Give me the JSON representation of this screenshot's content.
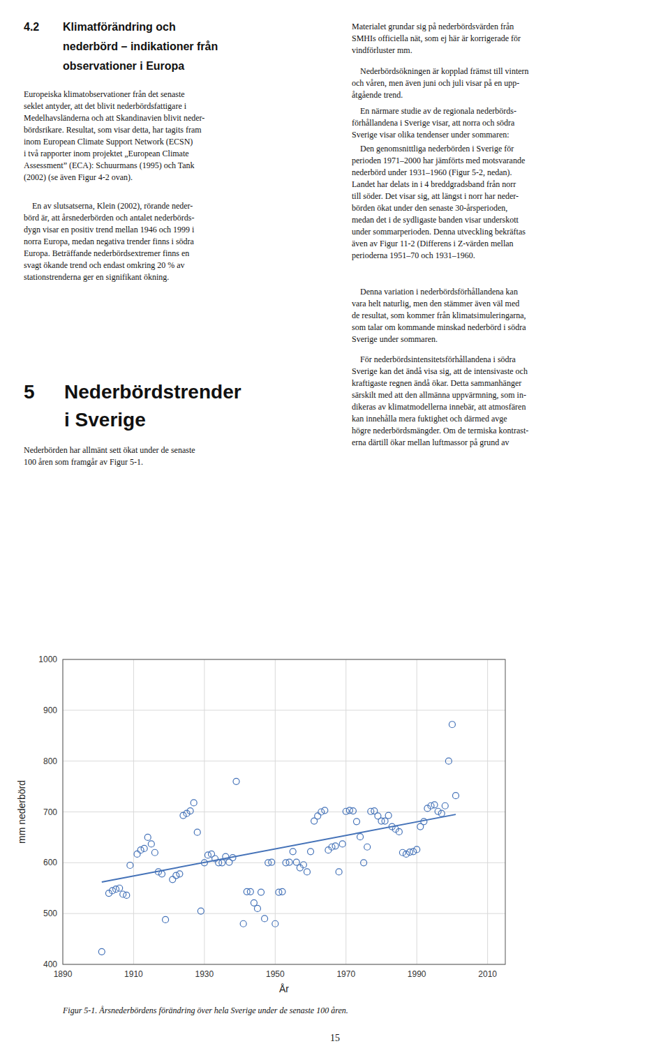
{
  "page": {
    "sections": [
      {
        "number": "4.2",
        "heading": [
          "Klimatförändring och",
          "nederbörd – indikationer från",
          "observationer i Europa"
        ]
      },
      {
        "number": "5",
        "heading": [
          "Nederbördstrender",
          "i Sverige"
        ]
      }
    ],
    "left_paragraphs": [
      [
        "Europeiska klimatobservationer från det senaste",
        "seklet antyder, att det blivit nederbördsfattigare i",
        "Medelhavsländerna och att Skandinavien blivit neder-",
        "bördsrikare. Resultat, som visar detta, har tagits fram",
        "inom European Climate Support Network (ECSN)",
        "i två rapporter inom projektet „European Climate",
        "Assessment” (ECA): Schuurmans (1995) och Tank",
        "(2002) (se även Figur 4-2 ovan)."
      ],
      [
        "    En av slutsatserna, Klein (2002), rörande neder-",
        "börd är, att årsnederbörden och antalet nederbörds-",
        "dygn visar en positiv trend mellan 1946 och 1999 i",
        "norra Europa, medan negativa trender finns i södra",
        "Europa. Beträffande nederbördsextremer finns en",
        "svagt ökande trend och endast omkring 20 % av",
        "stationstrenderna ger en signifikant ökning."
      ],
      [
        "Nederbörden har allmänt sett ökat under de senaste",
        "100 åren som framgår av Figur 5-1."
      ]
    ],
    "right_paragraphs": [
      [
        "Materialet grundar sig på nederbördsvärden från",
        "SMHIs officiella nät, som ej här är korrigerade för",
        "vindförluster mm."
      ],
      [
        "    Nederbördsökningen är kopplad främst till vintern",
        "och våren, men även juni och juli visar på en upp-",
        "åtgående trend."
      ],
      [
        "    En närmare studie av de regionala nederbörds-",
        "förhållandena i Sverige visar, att norra och södra",
        "Sverige visar olika tendenser under sommaren:"
      ],
      [
        "    Den genomsnittliga nederbörden i Sverige för",
        "perioden 1971–2000 har jämförts med motsvarande",
        "nederbörd under 1931–1960 (Figur 5-2, nedan).",
        "Landet har delats in i 4 breddgradsband från norr",
        "till söder. Det visar sig, att längst i norr har neder-",
        "börden ökat under den senaste 30-årsperioden,",
        "medan det i de sydligaste banden visar underskott",
        "under sommarperioden. Denna utveckling bekräftas",
        "även av Figur 11-2 (Differens i Z-värden mellan",
        "perioderna 1951–70 och 1931–1960."
      ],
      [
        "    Denna variation i nederbördsförhållandena kan",
        "vara helt naturlig, men den stämmer även väl med",
        "de resultat, som kommer från klimatsimuleringarna,",
        "som talar om kommande minskad nederbörd i södra",
        "Sverige under sommaren."
      ],
      [
        "    För nederbördsintensitetsförhållandena i södra",
        "Sverige kan det ändå visa sig, att de intensivaste och",
        "kraftigaste regnen ändå ökar. Detta sammanhänger",
        "särskilt med att den allmänna uppvärmning, som in-",
        "dikeras av klimatmodellerna innebär, att atmosfären",
        "kan innehålla mera fuktighet och därmed avge",
        "högre nederbördsmängder. Om de termiska kontrast-",
        "erna därtill ökar mellan luftmassor på grund av"
      ]
    ],
    "page_number": "15"
  },
  "chart_data": {
    "type": "scatter",
    "title": "Figur 5-1. Årsnederbördens förändring över hela Sverige under de senaste 100 åren.",
    "xlabel": "År",
    "ylabel": "mm nederbörd",
    "series": [
      {
        "type": "scatter",
        "marker": "circle",
        "color": "#4472b8",
        "x": [
          1901,
          1903,
          1904,
          1905,
          1906,
          1907,
          1908,
          1909,
          1911,
          1912,
          1913,
          1914,
          1915,
          1916,
          1917,
          1918,
          1919,
          1921,
          1922,
          1923,
          1924,
          1925,
          1926,
          1927,
          1928,
          1929,
          1930,
          1931,
          1932,
          1933,
          1934,
          1935,
          1936,
          1937,
          1938,
          1939,
          1941,
          1942,
          1943,
          1944,
          1945,
          1946,
          1947,
          1948,
          1949,
          1950,
          1951,
          1952,
          1953,
          1954,
          1955,
          1956,
          1957,
          1958,
          1959,
          1960,
          1961,
          1962,
          1963,
          1964,
          1965,
          1966,
          1967,
          1968,
          1969,
          1970,
          1971,
          1972,
          1973,
          1974,
          1975,
          1976,
          1977,
          1978,
          1979,
          1980,
          1981,
          1982,
          1983,
          1984,
          1985,
          1986,
          1987,
          1988,
          1989,
          1990,
          1991,
          1992,
          1993,
          1994,
          1995,
          1996,
          1997,
          1998,
          1999,
          2000,
          2001
        ],
        "values": [
          425,
          540,
          545,
          548,
          550,
          538,
          536,
          595,
          617,
          625,
          628,
          650,
          637,
          620,
          582,
          578,
          488,
          567,
          575,
          578,
          693,
          697,
          702,
          718,
          660,
          505,
          600,
          615,
          617,
          608,
          600,
          600,
          612,
          601,
          610,
          760,
          480,
          543,
          543,
          521,
          510,
          542,
          490,
          600,
          601,
          480,
          542,
          543,
          600,
          601,
          622,
          601,
          590,
          596,
          582,
          622,
          682,
          692,
          700,
          703,
          625,
          631,
          633,
          582,
          637,
          701,
          703,
          702,
          681,
          651,
          600,
          631,
          701,
          702,
          692,
          682,
          682,
          693,
          671,
          666,
          661,
          620,
          617,
          621,
          622,
          626,
          671,
          681,
          707,
          712,
          714,
          701,
          697,
          712,
          800,
          872,
          732
        ]
      },
      {
        "type": "line",
        "line_style": "solid",
        "color": "#4472b8",
        "x": [
          1901,
          2001
        ],
        "values": [
          562,
          695
        ]
      }
    ],
    "xlim": [
      1890,
      2015
    ],
    "ylim": [
      400,
      1000
    ],
    "xticks": [
      1890,
      1910,
      1930,
      1950,
      1970,
      1990,
      2010
    ],
    "yticks": [
      400,
      500,
      600,
      700,
      800,
      900,
      1000
    ],
    "grid": true
  }
}
